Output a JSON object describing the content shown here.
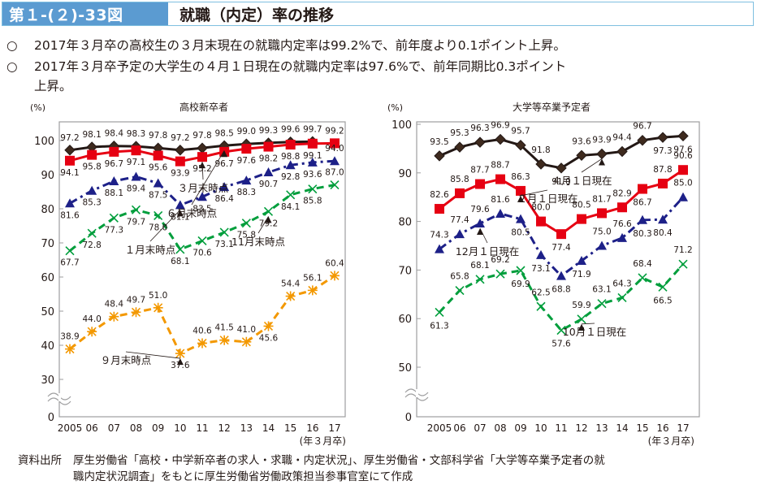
{
  "header": {
    "figure_number": "第１-(２)-33図",
    "title": "就職（内定）率の推移"
  },
  "bullets": [
    {
      "marker": "○",
      "text": "2017年３月卒の高校生の３月末現在の就職内定率は99.2%で、前年度より0.1ポイント上昇。"
    },
    {
      "marker": "○",
      "text": "2017年３月卒予定の大学生の４月１日現在の就職内定率は97.6%で、前年同期比0.3ポイント",
      "cont": "上昇。"
    }
  ],
  "source": {
    "label": "資料出所",
    "line1": "厚生労働省「高校・中学新卒者の求人・求職・内定状況」、厚生労働省・文部科学省「大学等卒業予定者の就",
    "line2": "職内定状況調査」をもとに厚生労働省労働政策担当参事官室にて作成"
  },
  "chart_data": [
    {
      "type": "line",
      "title": "高校新卒者",
      "ylabel": "(%)",
      "xlabel": "(年３月卒)",
      "categories": [
        "2005",
        "06",
        "07",
        "08",
        "09",
        "10",
        "11",
        "12",
        "13",
        "14",
        "15",
        "16",
        "17"
      ],
      "yticks": [
        0,
        30,
        40,
        50,
        60,
        70,
        80,
        90,
        100
      ],
      "ylim": [
        0,
        100
      ],
      "axis_break": "0-30",
      "grid": false,
      "series": [
        {
          "name": "6月末時点",
          "color": "#231815",
          "marker": "diamond",
          "dash": "solid",
          "values": [
            97.2,
            98.1,
            98.4,
            98.3,
            97.8,
            97.2,
            97.8,
            98.5,
            99.0,
            99.3,
            99.6,
            99.7,
            null
          ]
        },
        {
          "name": "3月末時点",
          "color": "#e60012",
          "marker": "square",
          "dash": "solid",
          "values": [
            94.1,
            95.8,
            96.7,
            97.1,
            95.6,
            93.9,
            95.2,
            96.7,
            97.6,
            98.2,
            98.8,
            99.1,
            99.2
          ]
        },
        {
          "name": "1月末時点",
          "color": "#1d2088",
          "marker": "triangle",
          "dash": "dashdot",
          "values": [
            81.6,
            85.3,
            88.1,
            89.4,
            87.5,
            81.1,
            83.5,
            86.4,
            88.3,
            90.7,
            92.8,
            93.6,
            94.0
          ]
        },
        {
          "name": "11月末時点",
          "color": "#009e3c",
          "marker": "x",
          "dash": "dash",
          "values": [
            67.7,
            72.8,
            77.3,
            79.7,
            78.0,
            68.1,
            70.6,
            73.1,
            75.8,
            79.2,
            84.1,
            85.8,
            87.0
          ]
        },
        {
          "name": "9月末時点",
          "color": "#f39800",
          "marker": "asterisk",
          "dash": "dash",
          "values": [
            38.9,
            44.0,
            48.4,
            49.7,
            51.0,
            37.6,
            40.6,
            41.5,
            41.0,
            45.6,
            54.4,
            56.1,
            60.4
          ]
        }
      ],
      "annotations": [
        {
          "text": "３月末時点",
          "series": 1,
          "point": 6
        },
        {
          "text": "６月末時点",
          "series": 0,
          "point": 7
        },
        {
          "text": "１月末時点",
          "series": 2,
          "point": 5
        },
        {
          "text": "11月末時点",
          "series": 3,
          "point": 9
        },
        {
          "text": "９月末時点",
          "series": 4,
          "point": 5
        }
      ]
    },
    {
      "type": "line",
      "title": "大学等卒業予定者",
      "ylabel": "(%)",
      "xlabel": "(年３月卒)",
      "categories": [
        "2005",
        "06",
        "07",
        "08",
        "09",
        "10",
        "11",
        "12",
        "13",
        "14",
        "15",
        "16",
        "17"
      ],
      "yticks": [
        0,
        50,
        60,
        70,
        80,
        90,
        100
      ],
      "ylim": [
        0,
        100
      ],
      "axis_break": "0-50",
      "grid": false,
      "series": [
        {
          "name": "４月１日現在",
          "color": "#231815",
          "marker": "diamond",
          "dash": "solid",
          "values": [
            93.5,
            95.3,
            96.3,
            96.9,
            95.7,
            91.8,
            91.0,
            93.6,
            93.9,
            94.4,
            96.7,
            97.3,
            97.6
          ]
        },
        {
          "name": "２月１日現在",
          "color": "#e60012",
          "marker": "square",
          "dash": "solid",
          "values": [
            82.6,
            85.8,
            87.7,
            88.7,
            86.3,
            80.0,
            77.4,
            80.5,
            81.7,
            82.9,
            86.7,
            87.8,
            90.6
          ]
        },
        {
          "name": "12月１日現在",
          "color": "#1d2088",
          "marker": "triangle",
          "dash": "dashdot",
          "values": [
            74.3,
            77.4,
            79.6,
            81.6,
            80.5,
            73.1,
            68.8,
            71.9,
            75.0,
            76.6,
            80.3,
            80.4,
            85.0
          ]
        },
        {
          "name": "10月１日現在",
          "color": "#009e3c",
          "marker": "x",
          "dash": "dash",
          "values": [
            61.3,
            65.8,
            68.1,
            69.2,
            69.9,
            62.5,
            57.6,
            59.9,
            63.1,
            64.3,
            68.4,
            66.5,
            71.2
          ]
        }
      ],
      "annotations": [
        {
          "text": "４月１日現在",
          "series": 0,
          "point": 8
        },
        {
          "text": "２月１日現在",
          "series": 1,
          "point": 4
        },
        {
          "text": "12月１日現在",
          "series": 2,
          "point": 2
        },
        {
          "text": "10月１日現在",
          "series": 3,
          "point": 7
        }
      ]
    }
  ]
}
